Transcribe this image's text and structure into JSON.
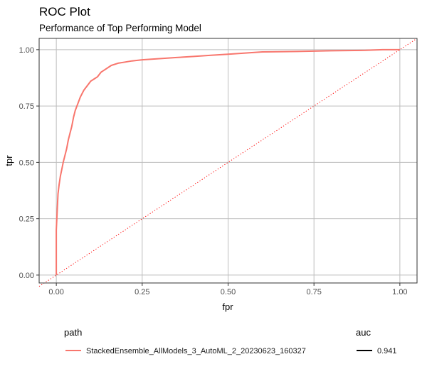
{
  "chart_data": {
    "type": "line",
    "title": "ROC Plot",
    "subtitle": "Performance of Top Performing Model",
    "xlabel": "fpr",
    "ylabel": "tpr",
    "xlim": [
      -0.05,
      1.05
    ],
    "ylim": [
      -0.035,
      1.05
    ],
    "x_ticks": [
      0.0,
      0.25,
      0.5,
      0.75,
      1.0
    ],
    "x_tick_labels": [
      "0.00",
      "0.25",
      "0.50",
      "0.75",
      "1.00"
    ],
    "y_ticks": [
      0.0,
      0.25,
      0.5,
      0.75,
      1.0
    ],
    "y_tick_labels": [
      "0.00",
      "0.25",
      "0.50",
      "0.75",
      "1.00"
    ],
    "grid": true,
    "legend_position": "bottom",
    "legends": [
      {
        "title": "path",
        "entries": [
          {
            "label": "StackedEnsemble_AllModels_3_AutoML_2_20230623_160327",
            "color": "#f8766d",
            "style": "solid"
          }
        ]
      },
      {
        "title": "auc",
        "entries": [
          {
            "label": "0.941",
            "color": "#000000",
            "style": "solid"
          }
        ]
      }
    ],
    "series": [
      {
        "name": "StackedEnsemble_AllModels_3_AutoML_2_20230623_160327",
        "color": "#f8766d",
        "style": "solid",
        "x": [
          0.0,
          0.0,
          0.003,
          0.005,
          0.008,
          0.012,
          0.016,
          0.02,
          0.025,
          0.03,
          0.035,
          0.04,
          0.045,
          0.05,
          0.055,
          0.06,
          0.065,
          0.07,
          0.08,
          0.09,
          0.1,
          0.11,
          0.12,
          0.13,
          0.14,
          0.16,
          0.18,
          0.2,
          0.22,
          0.25,
          0.3,
          0.35,
          0.4,
          0.45,
          0.5,
          0.55,
          0.6,
          0.7,
          0.8,
          0.9,
          0.95,
          1.0
        ],
        "y": [
          0.0,
          0.2,
          0.3,
          0.36,
          0.4,
          0.44,
          0.47,
          0.5,
          0.53,
          0.56,
          0.6,
          0.63,
          0.66,
          0.7,
          0.73,
          0.75,
          0.77,
          0.79,
          0.82,
          0.84,
          0.86,
          0.87,
          0.88,
          0.9,
          0.91,
          0.93,
          0.94,
          0.945,
          0.95,
          0.955,
          0.96,
          0.965,
          0.97,
          0.975,
          0.98,
          0.985,
          0.99,
          0.992,
          0.995,
          0.997,
          1.0,
          1.0
        ]
      },
      {
        "name": "",
        "color": "#ff0000",
        "style": "dotted",
        "x": [
          -0.05,
          1.05
        ],
        "y": [
          -0.05,
          1.05
        ]
      }
    ]
  }
}
